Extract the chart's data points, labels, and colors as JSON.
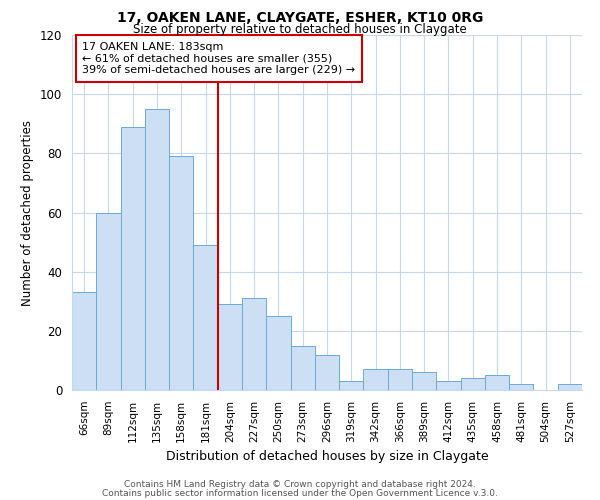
{
  "title": "17, OAKEN LANE, CLAYGATE, ESHER, KT10 0RG",
  "subtitle": "Size of property relative to detached houses in Claygate",
  "xlabel": "Distribution of detached houses by size in Claygate",
  "ylabel": "Number of detached properties",
  "bar_labels": [
    "66sqm",
    "89sqm",
    "112sqm",
    "135sqm",
    "158sqm",
    "181sqm",
    "204sqm",
    "227sqm",
    "250sqm",
    "273sqm",
    "296sqm",
    "319sqm",
    "342sqm",
    "366sqm",
    "389sqm",
    "412sqm",
    "435sqm",
    "458sqm",
    "481sqm",
    "504sqm",
    "527sqm"
  ],
  "bar_values": [
    33,
    60,
    89,
    95,
    79,
    49,
    29,
    31,
    25,
    15,
    12,
    3,
    7,
    7,
    6,
    3,
    4,
    5,
    2,
    0,
    2
  ],
  "bar_color": "#ccdff5",
  "bar_edge_color": "#6aaad4",
  "vline_x": 5.5,
  "vline_color": "#cc0000",
  "annotation_title": "17 OAKEN LANE: 183sqm",
  "annotation_line1": "← 61% of detached houses are smaller (355)",
  "annotation_line2": "39% of semi-detached houses are larger (229) →",
  "annotation_box_edge": "#cc0000",
  "ylim": [
    0,
    120
  ],
  "yticks": [
    0,
    20,
    40,
    60,
    80,
    100,
    120
  ],
  "footer1": "Contains HM Land Registry data © Crown copyright and database right 2024.",
  "footer2": "Contains public sector information licensed under the Open Government Licence v.3.0.",
  "background_color": "#ffffff",
  "grid_color": "#c8d8ec"
}
